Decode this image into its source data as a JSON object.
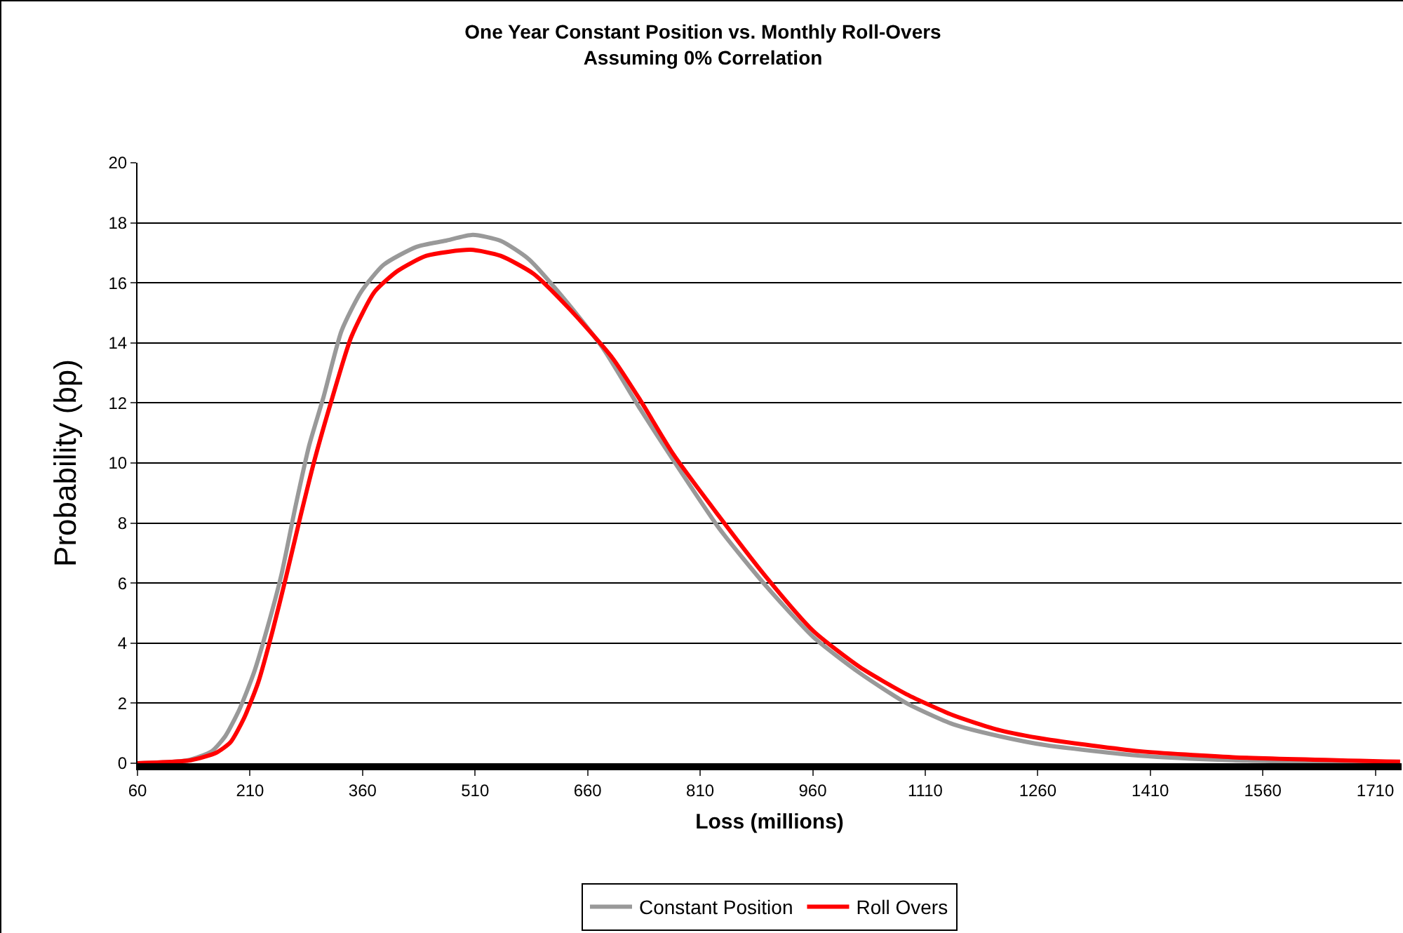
{
  "chart_data": {
    "type": "line",
    "title": "One Year Constant Position vs. Monthly Roll-Overs\nAssuming 0% Correlation",
    "xlabel": "Loss (millions)",
    "ylabel": "Probability (bp)",
    "xlim": [
      60,
      1745
    ],
    "xticks": [
      60,
      210,
      360,
      510,
      660,
      810,
      960,
      1110,
      1260,
      1410,
      1560,
      1710
    ],
    "ylim": [
      0,
      20
    ],
    "yticks": [
      0,
      2,
      4,
      6,
      8,
      10,
      12,
      14,
      16,
      18,
      20
    ],
    "grid": "y",
    "legend": "bottom",
    "marker": "none",
    "line_style": "solid",
    "series": [
      {
        "name": "Constant Position",
        "color": "#999999",
        "x": [
          60,
          127,
          159,
          177,
          196,
          215,
          233,
          252,
          271,
          289,
          308,
          332,
          358,
          388,
          432,
          470,
          507,
          544,
          581,
          631,
          681,
          730,
          774,
          836,
          898,
          961,
          1023,
          1085,
          1147,
          1209,
          1271,
          1396,
          1520,
          1743
        ],
        "values": [
          0,
          0.1,
          0.4,
          0.9,
          1.8,
          3.0,
          4.5,
          6.3,
          8.6,
          10.6,
          12.2,
          14.4,
          15.7,
          16.6,
          17.2,
          17.4,
          17.6,
          17.4,
          16.8,
          15.4,
          13.8,
          11.8,
          10.1,
          7.8,
          5.9,
          4.2,
          3.0,
          2.0,
          1.3,
          0.9,
          0.6,
          0.25,
          0.1,
          0
        ]
      },
      {
        "name": "Roll Overs",
        "color": "#ff0000",
        "x": [
          60,
          131,
          165,
          184,
          202,
          221,
          240,
          258,
          277,
          296,
          320,
          345,
          376,
          407,
          445,
          504,
          544,
          588,
          637,
          693,
          730,
          774,
          836,
          898,
          961,
          1023,
          1085,
          1147,
          1209,
          1271,
          1396,
          1520,
          1743
        ],
        "values": [
          0,
          0.1,
          0.35,
          0.7,
          1.5,
          2.7,
          4.4,
          6.2,
          8.2,
          10.1,
          12.2,
          14.2,
          15.7,
          16.4,
          16.9,
          17.1,
          16.9,
          16.3,
          15.1,
          13.5,
          12.1,
          10.3,
          8.2,
          6.2,
          4.4,
          3.2,
          2.3,
          1.6,
          1.1,
          0.8,
          0.4,
          0.2,
          0.05
        ]
      }
    ]
  }
}
